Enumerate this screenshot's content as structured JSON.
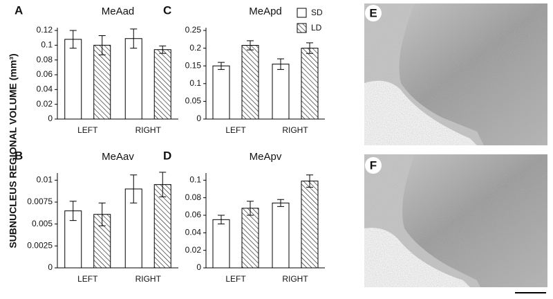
{
  "ylabel": "SUBNUCLEUS REGIONAL VOLUME (mm³)",
  "legend_items": [
    {
      "name": "SD",
      "color": "#ffffff",
      "hatch": false
    },
    {
      "name": "LD",
      "color": "#ffffff",
      "hatch": true
    }
  ],
  "images": [
    {
      "label": "E"
    },
    {
      "label": "F"
    }
  ],
  "chart_data": [
    {
      "type": "bar",
      "panel": "A",
      "title": "MeAad",
      "categories": [
        "LEFT",
        "RIGHT"
      ],
      "series": [
        {
          "values": [
            0.108,
            0.109
          ],
          "errors": [
            0.012,
            0.013
          ]
        },
        {
          "values": [
            0.1,
            0.094
          ],
          "errors": [
            0.013,
            0.005
          ]
        }
      ],
      "ylim": [
        0,
        0.12
      ],
      "yticks": [
        0,
        0.02,
        0.04,
        0.06,
        0.08,
        0.1,
        0.12
      ]
    },
    {
      "type": "bar",
      "panel": "B",
      "title": "MeAav",
      "categories": [
        "LEFT",
        "RIGHT"
      ],
      "series": [
        {
          "values": [
            0.0065,
            0.009
          ],
          "errors": [
            0.0011,
            0.0016
          ]
        },
        {
          "values": [
            0.0061,
            0.0095
          ],
          "errors": [
            0.0013,
            0.0014
          ]
        }
      ],
      "ylim": [
        0,
        0.0105
      ],
      "yticks": [
        0,
        0.0025,
        0.005,
        0.0075,
        0.01
      ]
    },
    {
      "type": "bar",
      "panel": "C",
      "title": "MeApd",
      "categories": [
        "LEFT",
        "RIGHT"
      ],
      "series": [
        {
          "values": [
            0.15,
            0.155
          ],
          "errors": [
            0.01,
            0.015
          ]
        },
        {
          "values": [
            0.208,
            0.2
          ],
          "errors": [
            0.013,
            0.015
          ]
        }
      ],
      "ylim": [
        0,
        0.25
      ],
      "yticks": [
        0,
        0.05,
        0.1,
        0.15,
        0.2,
        0.25
      ],
      "legend": true,
      "legend_position": "top-right"
    },
    {
      "type": "bar",
      "panel": "D",
      "title": "MeApv",
      "categories": [
        "LEFT",
        "RIGHT"
      ],
      "series": [
        {
          "values": [
            0.055,
            0.074
          ],
          "errors": [
            0.005,
            0.004
          ]
        },
        {
          "values": [
            0.068,
            0.099
          ],
          "errors": [
            0.008,
            0.007
          ]
        }
      ],
      "ylim": [
        0,
        0.105
      ],
      "yticks": [
        0,
        0.02,
        0.04,
        0.06,
        0.08,
        0.1
      ]
    }
  ]
}
